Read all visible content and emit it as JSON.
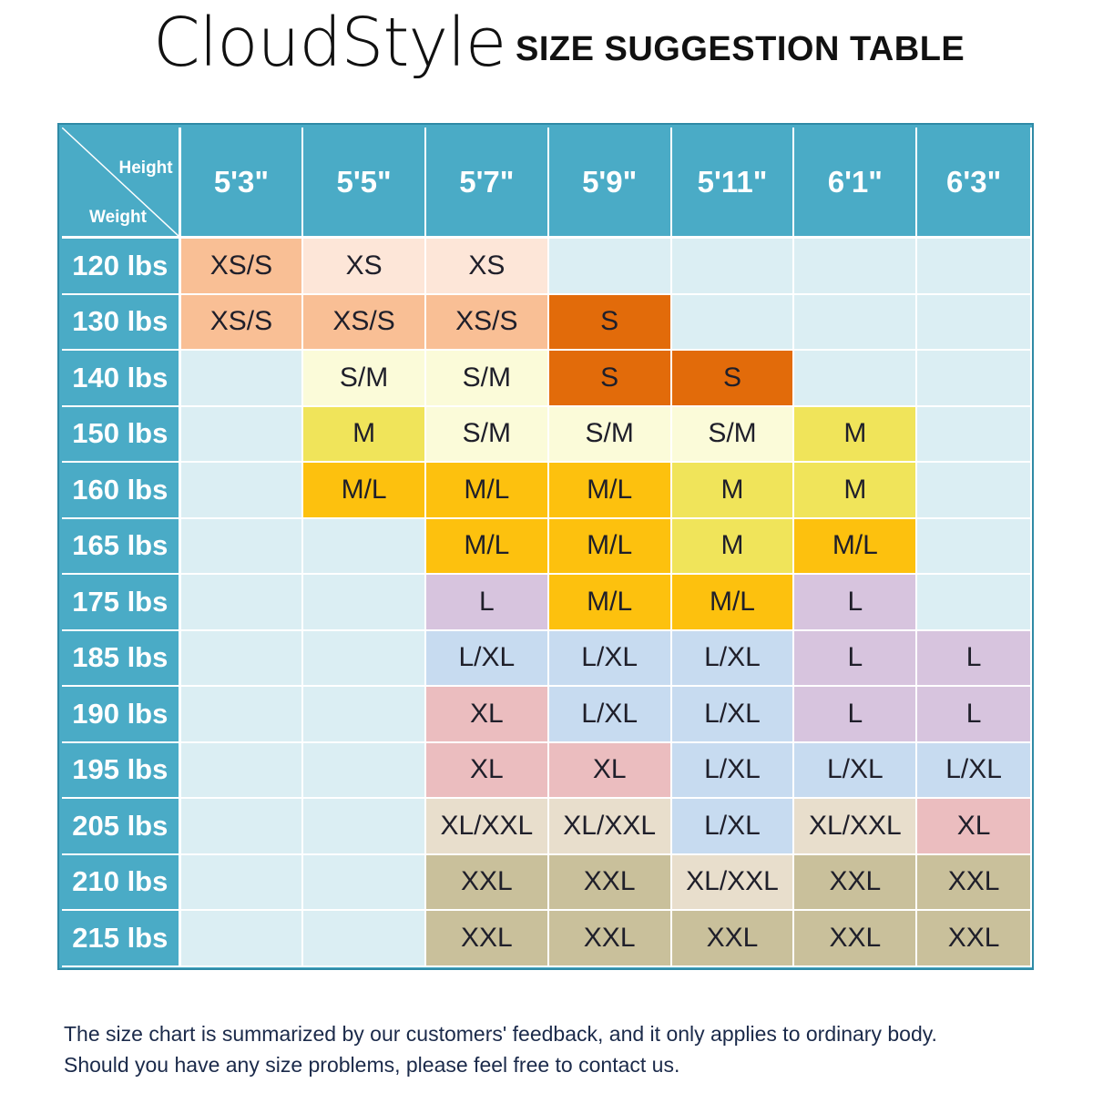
{
  "header": {
    "brand": "CloudStyle",
    "title": "SIZE SUGGESTION TABLE"
  },
  "table": {
    "corner": {
      "height_label": "Height",
      "weight_label": "Weight"
    },
    "columns": [
      "5'3\"",
      "5'5\"",
      "5'7\"",
      "5'9\"",
      "5'11\"",
      "6'1\"",
      "6'3\""
    ],
    "colors": {
      "empty": "#dbeef3",
      "XS": "#fde6d8",
      "XS/S": "#f9bf95",
      "S": "#e26b0a",
      "S/M": "#fbfbd9",
      "M": "#f0e45a",
      "M/L": "#fdc10e",
      "L": "#d7c4de",
      "L/XL": "#c7dbf0",
      "XL": "#ebbdbf",
      "XL/XXL": "#e8decc",
      "XXL": "#c9c09b",
      "header": "#4aabc6"
    },
    "rows": [
      {
        "label": "120 lbs",
        "cells": [
          "XS/S",
          "XS",
          "XS",
          "",
          "",
          "",
          ""
        ]
      },
      {
        "label": "130 lbs",
        "cells": [
          "XS/S",
          "XS/S",
          "XS/S",
          "S",
          "",
          "",
          ""
        ]
      },
      {
        "label": "140 lbs",
        "cells": [
          "",
          "S/M",
          "S/M",
          "S",
          "S",
          "",
          ""
        ]
      },
      {
        "label": "150 lbs",
        "cells": [
          "",
          "M",
          "S/M",
          "S/M",
          "S/M",
          "M",
          ""
        ]
      },
      {
        "label": "160 lbs",
        "cells": [
          "",
          "M/L",
          "M/L",
          "M/L",
          "M",
          "M",
          ""
        ]
      },
      {
        "label": "165 lbs",
        "cells": [
          "",
          "",
          "M/L",
          "M/L",
          "M",
          "M/L",
          ""
        ]
      },
      {
        "label": "175 lbs",
        "cells": [
          "",
          "",
          "L",
          "M/L",
          "M/L",
          "L",
          ""
        ]
      },
      {
        "label": "185 lbs",
        "cells": [
          "",
          "",
          "L/XL",
          "L/XL",
          "L/XL",
          "L",
          "L"
        ]
      },
      {
        "label": "190 lbs",
        "cells": [
          "",
          "",
          "XL",
          "L/XL",
          "L/XL",
          "L",
          "L"
        ]
      },
      {
        "label": "195 lbs",
        "cells": [
          "",
          "",
          "XL",
          "XL",
          "L/XL",
          "L/XL",
          "L/XL"
        ]
      },
      {
        "label": "205 lbs",
        "cells": [
          "",
          "",
          "XL/XXL",
          "XL/XXL",
          "L/XL",
          "XL/XXL",
          "XL"
        ]
      },
      {
        "label": "210 lbs",
        "cells": [
          "",
          "",
          "XXL",
          "XXL",
          "XL/XXL",
          "XXL",
          "XXL"
        ]
      },
      {
        "label": "215 lbs",
        "cells": [
          "",
          "",
          "XXL",
          "XXL",
          "XXL",
          "XXL",
          "XXL"
        ]
      }
    ]
  },
  "footer": {
    "line1": "The size chart is summarized by our customers' feedback, and it only applies to ordinary body.",
    "line2": "Should you have any size problems, please feel free to contact us."
  }
}
